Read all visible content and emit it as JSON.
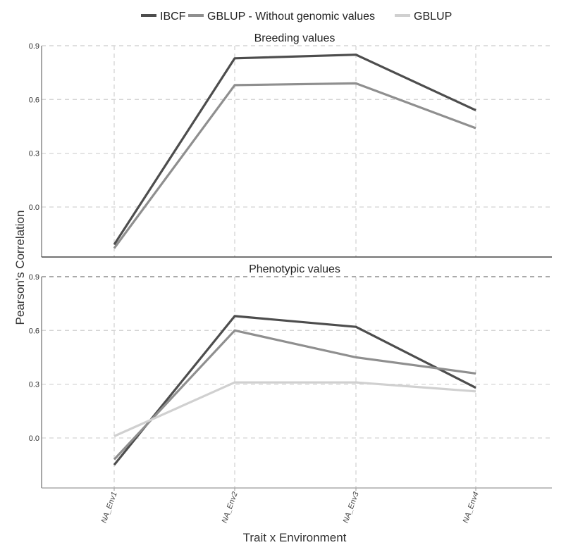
{
  "legend": {
    "items": [
      {
        "label": "IBCF",
        "color": "#4d4d4d"
      },
      {
        "label": "GBLUP - Without genomic values",
        "color": "#8f8f8f"
      },
      {
        "label": "GBLUP",
        "color": "#d0d0d0"
      }
    ]
  },
  "axes": {
    "ylabel": "Pearson's Correlation",
    "xlabel": "Trait x Environment",
    "yticks": [
      "0.9",
      "0.6",
      "0.3",
      "0.0"
    ],
    "xticks": [
      "NA_Env1",
      "NA_Env2",
      "NA_Env3",
      "NA_Env4"
    ]
  },
  "panels": [
    {
      "title": "Breeding values"
    },
    {
      "title": "Phenotypic values"
    }
  ],
  "chart_data": [
    {
      "type": "line",
      "title": "Breeding values",
      "xlabel": "Trait x Environment",
      "ylabel": "Pearson's Correlation",
      "categories": [
        "NA_Env1",
        "NA_Env2",
        "NA_Env3",
        "NA_Env4"
      ],
      "ylim": [
        -0.28,
        0.9
      ],
      "yticks": [
        0.0,
        0.3,
        0.6,
        0.9
      ],
      "grid": true,
      "legend_position": "top",
      "series": [
        {
          "name": "IBCF",
          "values": [
            -0.21,
            0.83,
            0.85,
            0.54
          ],
          "color": "#4d4d4d"
        },
        {
          "name": "GBLUP - Without genomic values",
          "values": [
            -0.23,
            0.68,
            0.69,
            0.44
          ],
          "color": "#8f8f8f"
        }
      ]
    },
    {
      "type": "line",
      "title": "Phenotypic values",
      "xlabel": "Trait x Environment",
      "ylabel": "Pearson's Correlation",
      "categories": [
        "NA_Env1",
        "NA_Env2",
        "NA_Env3",
        "NA_Env4"
      ],
      "ylim": [
        -0.28,
        0.9
      ],
      "yticks": [
        0.0,
        0.3,
        0.6,
        0.9
      ],
      "grid": true,
      "legend_position": "top",
      "series": [
        {
          "name": "IBCF",
          "values": [
            -0.15,
            0.68,
            0.62,
            0.28
          ],
          "color": "#4d4d4d"
        },
        {
          "name": "GBLUP - Without genomic values",
          "values": [
            -0.12,
            0.6,
            0.45,
            0.36
          ],
          "color": "#8f8f8f"
        },
        {
          "name": "GBLUP",
          "values": [
            0.01,
            0.31,
            0.31,
            0.26
          ],
          "color": "#d0d0d0"
        }
      ]
    }
  ]
}
